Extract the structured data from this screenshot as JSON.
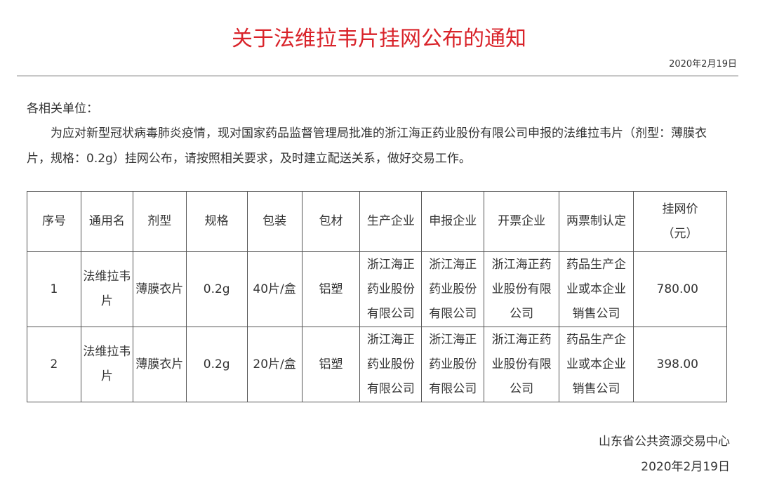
{
  "title": "关于法维拉韦片挂网公布的通知",
  "top_date": "2020年2月19日",
  "salutation": "各相关单位：",
  "body": "为应对新型冠状病毒肺炎疫情，现对国家药品监督管理局批准的浙江海正药业股份有限公司申报的法维拉韦片（剂型：薄膜衣片，规格：0.2g）挂网公布，请按照相关要求，及时建立配送关系，做好交易工作。",
  "colors": {
    "title": "#d9232a"
  },
  "table": {
    "headers": [
      "序号",
      "通用名",
      "剂型",
      "规格",
      "包装",
      "包材",
      "生产企业",
      "申报企业",
      "开票企业",
      "两票制认定",
      "挂网价（元）"
    ],
    "rows": [
      [
        "1",
        "法维拉韦片",
        "薄膜衣片",
        "0.2g",
        "40片/盒",
        "铝塑",
        "浙江海正药业股份有限公司",
        "浙江海正药业股份有限公司",
        "浙江海正药业股份有限公司",
        "药品生产企业或本企业销售公司",
        "780.00"
      ],
      [
        "2",
        "法维拉韦片",
        "薄膜衣片",
        "0.2g",
        "20片/盒",
        "铝塑",
        "浙江海正药业股份有限公司",
        "浙江海正药业股份有限公司",
        "浙江海正药业股份有限公司",
        "药品生产企业或本企业销售公司",
        "398.00"
      ]
    ]
  },
  "issuer": "山东省公共资源交易中心",
  "bottom_date": "2020年2月19日"
}
